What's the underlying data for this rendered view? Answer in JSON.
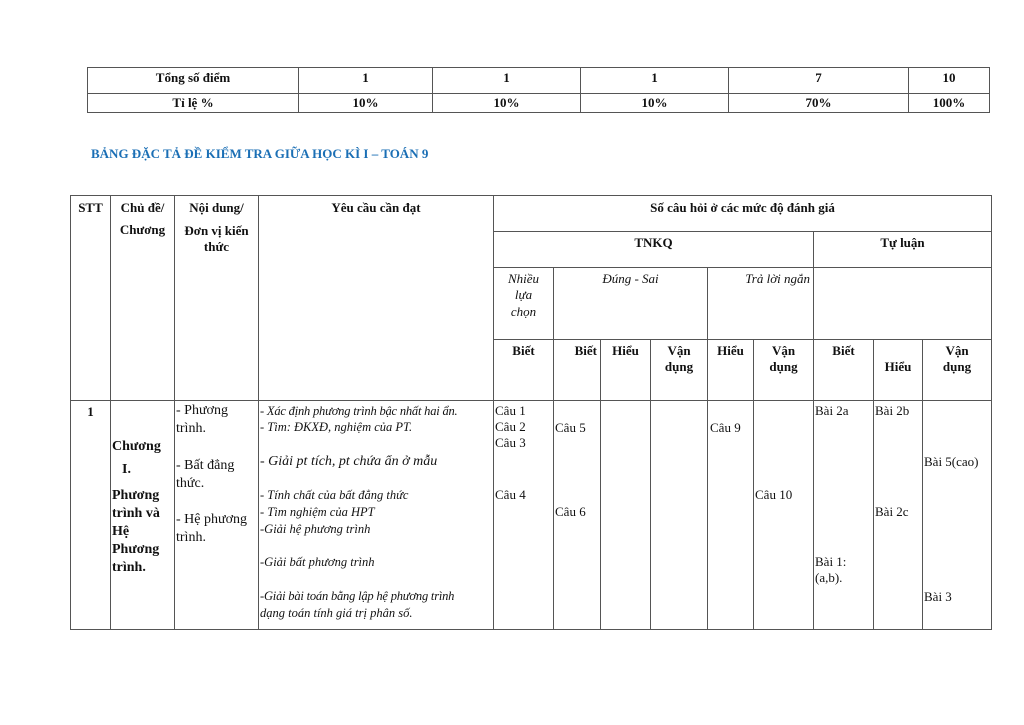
{
  "summary_table": {
    "rows": [
      {
        "label": "Tổng số điểm",
        "values": [
          "1",
          "1",
          "1",
          "7",
          "10"
        ]
      },
      {
        "label": "Tỉ lệ %",
        "values": [
          "10%",
          "10%",
          "10%",
          "70%",
          "100%"
        ]
      }
    ]
  },
  "section_title": "BẢNG ĐẶC TẢ ĐỀ KIỂM TRA GIỮA  HỌC KÌ I – TOÁN 9",
  "spec_table": {
    "headers": {
      "stt": "STT",
      "chu_de_1": "Chủ đề/",
      "chu_de_2": "Chương",
      "noi_dung_1": "Nội dung/",
      "noi_dung_2": "Đơn vị kiến",
      "noi_dung_3": "thức",
      "yeu_cau": "Yêu cầu cần đạt",
      "so_cau": "Số câu hỏi ở các mức độ đánh giá",
      "tnkq": "TNKQ",
      "tu_luan": "Tự luận",
      "nhieu_lua_chon_1": "Nhiều",
      "nhieu_lua_chon_2": "lựa",
      "nhieu_lua_chon_3": "chọn",
      "dung_sai": "Đúng - Sai",
      "tra_loi_ngan": "Trả lời ngắn",
      "levels": [
        {
          "l1": "Biết",
          "l2": ""
        },
        {
          "l1": "Biết",
          "l2": ""
        },
        {
          "l1": "Hiểu",
          "l2": ""
        },
        {
          "l1": "Vận",
          "l2": "dụng"
        },
        {
          "l1": "Hiểu",
          "l2": ""
        },
        {
          "l1": "Vận",
          "l2": "dụng"
        },
        {
          "l1": "Biết",
          "l2": ""
        },
        {
          "l1": "",
          "l2": "Hiểu"
        },
        {
          "l1": "Vận",
          "l2": "dụng"
        }
      ]
    },
    "row1": {
      "stt": "1",
      "chuong": [
        "Chương",
        "I.",
        "Phương",
        "trình và",
        "Hệ",
        "Phương",
        "trình."
      ],
      "noi_dung": [
        "- Phương",
        "trình.",
        "- Bất đẳng",
        "thức.",
        "- Hệ phương",
        "trình."
      ],
      "yeu_cau": [
        "- Xác định phương trình bậc nhất hai ẩn.",
        "- Tìm: ĐKXĐ, nghiệm của PT.",
        "- Giải pt tích, pt chứa ẩn ở mẫu",
        "- Tính chất của bất đẳng thức",
        "- Tìm nghiệm của HPT",
        "-Giải hệ phương trình",
        "-Giải bất phương trình",
        "-Giải bài toán bằng lập hệ phương trình",
        "dạng toán tính giá trị phân số."
      ],
      "nlc_biet": [
        "Câu 1",
        "Câu 2",
        "Câu 3",
        "Câu 4"
      ],
      "ds_biet": [
        "Câu 5",
        "Câu 6"
      ],
      "tln_hieu": "Câu 9",
      "tln_vandung": "Câu 10",
      "tl_biet": [
        "Bài 2a",
        "Bài 1:",
        "(a,b)."
      ],
      "tl_hieu": [
        "Bài 2b",
        "Bài 2c"
      ],
      "tl_vandung": [
        "Bài 5(cao)",
        "Bài 3"
      ]
    }
  },
  "colors": {
    "title": "#1b6fb5",
    "border": "#555555"
  }
}
